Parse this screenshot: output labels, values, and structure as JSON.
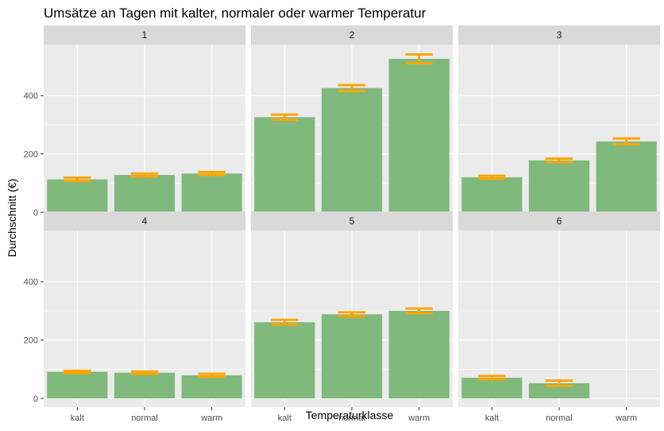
{
  "chart_data": {
    "type": "bar",
    "title": "Umsätze an Tagen mit kalter, normaler oder warmer Temperatur",
    "xlabel": "Temperaturklasse",
    "ylabel": "Durchschnitt (€)",
    "categories": [
      "kalt",
      "normal",
      "warm"
    ],
    "yticks": [
      0,
      200,
      400
    ],
    "ylim": [
      -30,
      575
    ],
    "grid": true,
    "facets": [
      {
        "label": "1",
        "values": [
          113,
          128,
          133
        ],
        "errors": [
          [
            107,
            119
          ],
          [
            123,
            133
          ],
          [
            128,
            138
          ]
        ]
      },
      {
        "label": "2",
        "values": [
          326,
          426,
          526
        ],
        "errors": [
          [
            317,
            335
          ],
          [
            416,
            436
          ],
          [
            511,
            541
          ]
        ]
      },
      {
        "label": "3",
        "values": [
          120,
          178,
          243
        ],
        "errors": [
          [
            115,
            125
          ],
          [
            172,
            184
          ],
          [
            233,
            253
          ]
        ]
      },
      {
        "label": "4",
        "values": [
          91,
          88,
          79
        ],
        "errors": [
          [
            87,
            95
          ],
          [
            84,
            92
          ],
          [
            74,
            84
          ]
        ]
      },
      {
        "label": "5",
        "values": [
          261,
          288,
          300
        ],
        "errors": [
          [
            253,
            269
          ],
          [
            281,
            295
          ],
          [
            292,
            308
          ]
        ]
      },
      {
        "label": "6",
        "values": [
          71,
          52,
          null
        ],
        "errors": [
          [
            65,
            77
          ],
          [
            43,
            61
          ],
          null
        ]
      }
    ],
    "colors": {
      "bar": "#7fb97c",
      "error": "#ffa500",
      "panel": "#ebebeb",
      "strip": "#d9d9d9",
      "grid": "#ffffff"
    }
  }
}
